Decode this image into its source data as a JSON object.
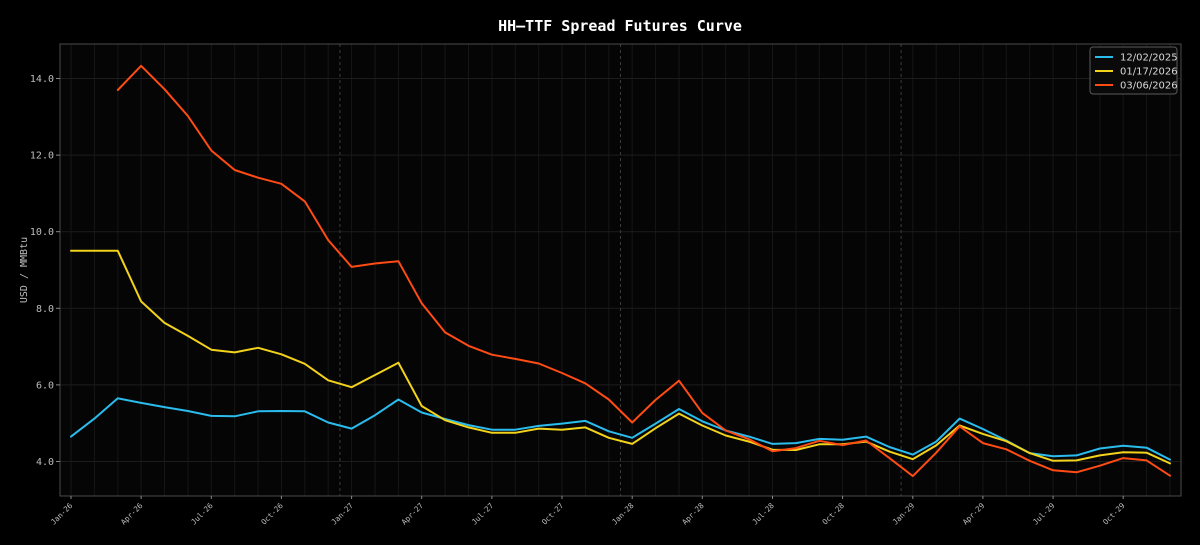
{
  "chart_data": {
    "type": "line",
    "title": "HH–TTF Spread Futures Curve",
    "xlabel": "",
    "ylabel": "USD / MMBtu",
    "ylim": [
      3.1,
      14.9
    ],
    "yticks": [
      4.0,
      6.0,
      8.0,
      10.0,
      12.0,
      14.0
    ],
    "ytick_labels": [
      "4.0",
      "6.0",
      "8.0",
      "10.0",
      "12.0",
      "14.0"
    ],
    "grid": true,
    "legend_position": "top-right",
    "x_categories": [
      "Jan-26",
      "Feb-26",
      "Mar-26",
      "Apr-26",
      "May-26",
      "Jun-26",
      "Jul-26",
      "Aug-26",
      "Sep-26",
      "Oct-26",
      "Nov-26",
      "Dec-26",
      "Jan-27",
      "Feb-27",
      "Mar-27",
      "Apr-27",
      "May-27",
      "Jun-27",
      "Jul-27",
      "Aug-27",
      "Sep-27",
      "Oct-27",
      "Nov-27",
      "Dec-27",
      "Jan-28",
      "Feb-28",
      "Mar-28",
      "Apr-28",
      "May-28",
      "Jun-28",
      "Jul-28",
      "Aug-28",
      "Sep-28",
      "Oct-28",
      "Nov-28",
      "Dec-28",
      "Jan-29",
      "Feb-29",
      "Mar-29",
      "Apr-29",
      "May-29",
      "Jun-29",
      "Jul-29",
      "Aug-29",
      "Sep-29",
      "Oct-29",
      "Nov-29",
      "Dec-29"
    ],
    "xtick_labels": [
      "Jan-26",
      "Apr-26",
      "Jul-26",
      "Oct-26",
      "Jan-27",
      "Apr-27",
      "Jul-27",
      "Oct-27",
      "Jan-28",
      "Apr-28",
      "Jul-28",
      "Oct-28",
      "Jan-29",
      "Apr-29",
      "Jul-29",
      "Oct-29"
    ],
    "xtick_indices": [
      0,
      3,
      6,
      9,
      12,
      15,
      18,
      21,
      24,
      27,
      30,
      33,
      36,
      39,
      42,
      45
    ],
    "year_boundaries": [
      11.5,
      23.5,
      35.5
    ],
    "series": [
      {
        "name": "12/02/2025",
        "color": "#2bbcee",
        "values": [
          4.65,
          5.12,
          5.65,
          5.53,
          5.42,
          5.32,
          5.19,
          5.18,
          5.31,
          5.32,
          5.31,
          5.02,
          4.86,
          5.21,
          5.62,
          5.28,
          5.11,
          4.95,
          4.83,
          4.83,
          4.93,
          4.99,
          5.06,
          4.79,
          4.62,
          4.99,
          5.37,
          5.05,
          4.81,
          4.65,
          4.46,
          4.48,
          4.59,
          4.57,
          4.65,
          4.38,
          4.18,
          4.52,
          5.12,
          4.85,
          4.55,
          4.22,
          4.14,
          4.16,
          4.34,
          4.41,
          4.36,
          4.05
        ]
      },
      {
        "name": "01/17/2026",
        "color": "#f2d21b",
        "values": [
          9.5,
          9.5,
          9.5,
          8.18,
          7.62,
          7.28,
          6.92,
          6.85,
          6.97,
          6.8,
          6.55,
          6.12,
          5.94,
          6.26,
          6.58,
          5.45,
          5.08,
          4.89,
          4.75,
          4.75,
          4.86,
          4.83,
          4.89,
          4.62,
          4.46,
          4.87,
          5.25,
          4.94,
          4.68,
          4.52,
          4.31,
          4.3,
          4.45,
          4.45,
          4.52,
          4.26,
          4.06,
          4.42,
          4.94,
          4.72,
          4.53,
          4.22,
          4.02,
          4.03,
          4.16,
          4.24,
          4.23,
          3.95
        ]
      },
      {
        "name": "03/06/2026",
        "color": "#ff4b14",
        "values": [
          null,
          null,
          13.7,
          14.33,
          13.72,
          13.02,
          12.12,
          11.61,
          11.41,
          11.25,
          10.79,
          9.78,
          9.08,
          9.17,
          9.23,
          8.13,
          7.37,
          7.02,
          6.79,
          6.68,
          6.56,
          6.31,
          6.04,
          5.62,
          5.02,
          5.61,
          6.11,
          5.27,
          4.81,
          4.58,
          4.27,
          4.35,
          4.54,
          4.43,
          4.55,
          4.09,
          3.62,
          4.23,
          4.92,
          4.48,
          4.32,
          4.02,
          3.77,
          3.72,
          3.89,
          4.09,
          4.03,
          3.63
        ]
      }
    ]
  }
}
